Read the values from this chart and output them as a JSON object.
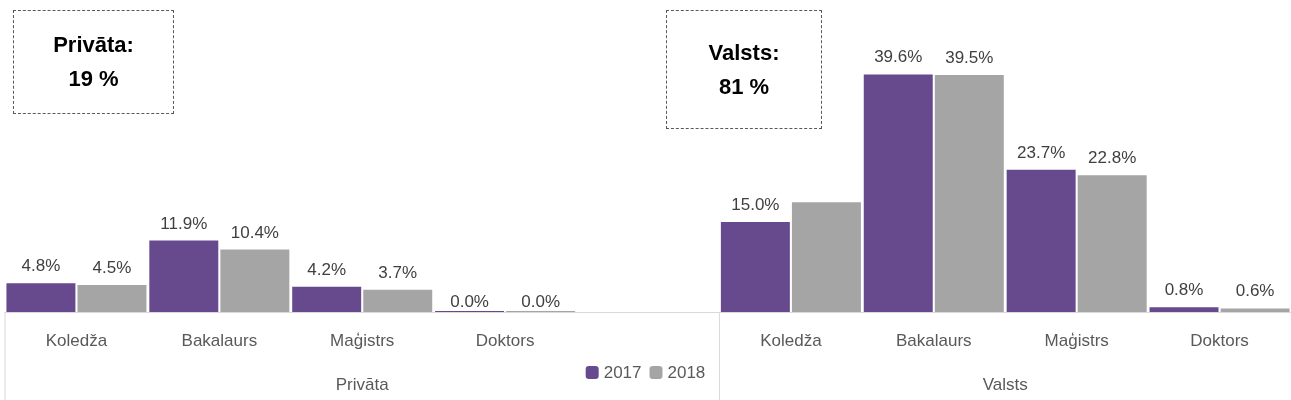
{
  "chart_data": {
    "type": "bar",
    "categories": [
      "Koledža",
      "Bakalaurs",
      "Maģistrs",
      "Doktors",
      null,
      "Koledža",
      "Bakalaurs",
      "Maģistrs",
      "Doktors"
    ],
    "series": [
      {
        "name": "2017",
        "color": "#674a8e",
        "values": [
          4.8,
          11.9,
          4.2,
          0.0,
          null,
          15.0,
          39.6,
          23.7,
          0.8
        ],
        "value_labels": [
          "4.8%",
          "11.9%",
          "4.2%",
          "0.0%",
          null,
          "15.0%",
          "39.6%",
          "23.7%",
          "0.8%"
        ]
      },
      {
        "name": "2018",
        "color": "#a5a5a5",
        "values": [
          4.5,
          10.4,
          3.7,
          0.0,
          null,
          18.3,
          39.5,
          22.8,
          0.6
        ],
        "value_labels": [
          "4.5%",
          "10.4%",
          "3.7%",
          "0.0%",
          null,
          null,
          "39.5%",
          "22.8%",
          "0.6%"
        ]
      }
    ],
    "annotations": [
      "Privāta:\n19 %",
      "Valsts:\n81 %",
      "Privāta",
      "Valsts"
    ],
    "grid": false,
    "legend": "bottom"
  }
}
